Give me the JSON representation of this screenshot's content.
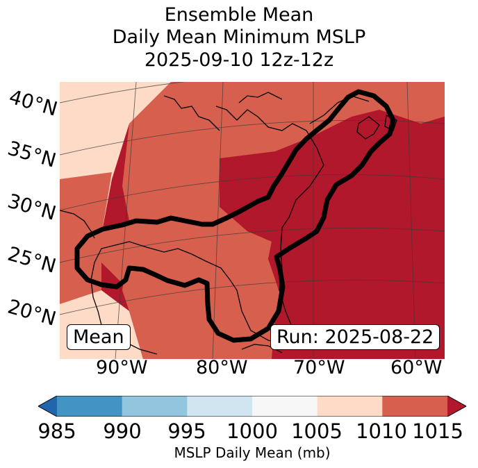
{
  "title": {
    "line1": "Ensemble Mean",
    "line2": "Daily Mean Minimum MSLP",
    "line3": "2025-09-10 12z-12z"
  },
  "map": {
    "lat_labels": [
      "40°N",
      "35°N",
      "30°N",
      "25°N",
      "20°N"
    ],
    "lon_labels": [
      "90°W",
      "80°W",
      "70°W",
      "60°W"
    ],
    "mean_label": "Mean",
    "run_label": "Run: 2025-08-22"
  },
  "colorbar": {
    "ticks": [
      "985",
      "990",
      "995",
      "1000",
      "1005",
      "1010",
      "1015"
    ],
    "colors": [
      "#4393c3",
      "#92c5de",
      "#d1e5f0",
      "#f7f7f7",
      "#fddbc7",
      "#d6604d",
      "#b2182b"
    ],
    "under_color": "#2166ac",
    "over_color": "#b2182b",
    "label": "MSLP Daily Mean (mb)"
  }
}
